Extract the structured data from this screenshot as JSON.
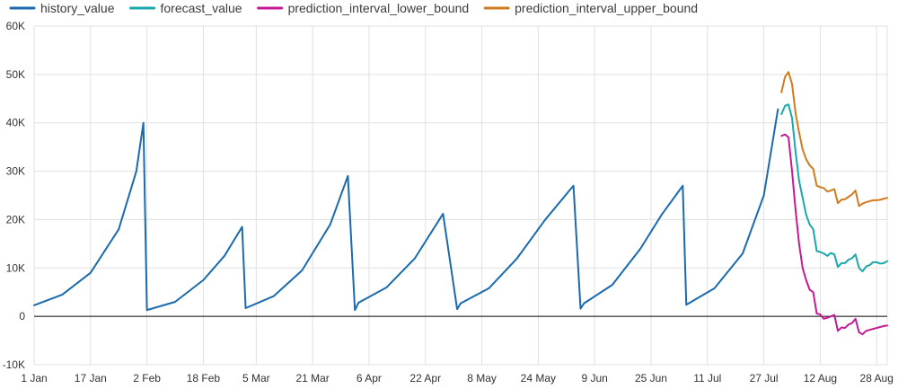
{
  "chart_data": {
    "type": "line",
    "ylim": [
      -10000,
      60000
    ],
    "y_ticks": [
      -10000,
      0,
      10000,
      20000,
      30000,
      40000,
      50000,
      60000
    ],
    "y_tick_labels": [
      "-10K",
      "0",
      "10K",
      "20K",
      "30K",
      "40K",
      "50K",
      "60K"
    ],
    "x_range": [
      "2023-01-01",
      "2023-08-31"
    ],
    "x_ticks": [
      "2023-01-01",
      "2023-01-17",
      "2023-02-02",
      "2023-02-18",
      "2023-03-05",
      "2023-03-21",
      "2023-04-06",
      "2023-04-22",
      "2023-05-08",
      "2023-05-24",
      "2023-06-09",
      "2023-06-25",
      "2023-07-11",
      "2023-07-27",
      "2023-08-12",
      "2023-08-28"
    ],
    "x_tick_labels": [
      "1 Jan",
      "17 Jan",
      "2 Feb",
      "18 Feb",
      "5 Mar",
      "21 Mar",
      "6 Apr",
      "22 Apr",
      "8 May",
      "24 May",
      "9 Jun",
      "25 Jun",
      "11 Jul",
      "27 Jul",
      "12 Aug",
      "28 Aug"
    ],
    "grid": true,
    "legend_position": "top-left",
    "series": [
      {
        "name": "history_value",
        "color": "#1a6aad",
        "x": [
          "2023-01-01",
          "2023-01-09",
          "2023-01-17",
          "2023-01-25",
          "2023-01-30",
          "2023-02-01",
          "2023-02-02",
          "2023-02-10",
          "2023-02-18",
          "2023-02-24",
          "2023-03-01",
          "2023-03-02",
          "2023-03-10",
          "2023-03-18",
          "2023-03-26",
          "2023-03-31",
          "2023-04-02",
          "2023-04-03",
          "2023-04-11",
          "2023-04-19",
          "2023-04-27",
          "2023-05-01",
          "2023-05-02",
          "2023-05-10",
          "2023-05-18",
          "2023-05-26",
          "2023-06-03",
          "2023-06-05",
          "2023-06-06",
          "2023-06-14",
          "2023-06-22",
          "2023-06-28",
          "2023-07-04",
          "2023-07-05",
          "2023-07-13",
          "2023-07-21",
          "2023-07-27",
          "2023-07-31"
        ],
        "values": [
          2300,
          4500,
          9000,
          18000,
          30000,
          40000,
          1300,
          3000,
          7500,
          12500,
          18500,
          1700,
          4200,
          9500,
          19000,
          29000,
          1300,
          2800,
          6000,
          12000,
          21200,
          1500,
          2700,
          5800,
          12000,
          20000,
          27000,
          1600,
          2700,
          6500,
          14000,
          21000,
          27000,
          2400,
          5800,
          13000,
          25000,
          42800
        ]
      },
      {
        "name": "forecast_value",
        "color": "#19a9ab",
        "x": [
          "2023-08-01",
          "2023-08-02",
          "2023-08-03",
          "2023-08-04",
          "2023-08-05",
          "2023-08-06",
          "2023-08-07",
          "2023-08-08",
          "2023-08-09",
          "2023-08-10",
          "2023-08-11",
          "2023-08-12",
          "2023-08-13",
          "2023-08-14",
          "2023-08-15",
          "2023-08-16",
          "2023-08-17",
          "2023-08-18",
          "2023-08-19",
          "2023-08-20",
          "2023-08-21",
          "2023-08-22",
          "2023-08-23",
          "2023-08-24",
          "2023-08-25",
          "2023-08-26",
          "2023-08-27",
          "2023-08-28",
          "2023-08-29",
          "2023-08-30",
          "2023-08-31"
        ],
        "values": [
          41800,
          43500,
          43800,
          41000,
          34000,
          28000,
          24500,
          21000,
          19000,
          18000,
          13500,
          13300,
          13000,
          12500,
          13100,
          12800,
          10200,
          11000,
          11000,
          11700,
          12000,
          12800,
          10000,
          9300,
          10300,
          10600,
          11200,
          11200,
          10900,
          11000,
          11400
        ]
      },
      {
        "name": "prediction_interval_lower_bound",
        "color": "#c41a94",
        "x": [
          "2023-08-01",
          "2023-08-02",
          "2023-08-03",
          "2023-08-04",
          "2023-08-05",
          "2023-08-06",
          "2023-08-07",
          "2023-08-08",
          "2023-08-09",
          "2023-08-10",
          "2023-08-11",
          "2023-08-12",
          "2023-08-13",
          "2023-08-14",
          "2023-08-15",
          "2023-08-16",
          "2023-08-17",
          "2023-08-18",
          "2023-08-19",
          "2023-08-20",
          "2023-08-21",
          "2023-08-22",
          "2023-08-23",
          "2023-08-24",
          "2023-08-25",
          "2023-08-26",
          "2023-08-27",
          "2023-08-28",
          "2023-08-29",
          "2023-08-30",
          "2023-08-31"
        ],
        "values": [
          37300,
          37600,
          37000,
          30000,
          22000,
          15000,
          10000,
          7500,
          5500,
          5000,
          600,
          400,
          -500,
          -300,
          0,
          300,
          -3000,
          -2300,
          -2400,
          -1700,
          -1400,
          -500,
          -3300,
          -3700,
          -3000,
          -2800,
          -2600,
          -2400,
          -2200,
          -2000,
          -1900
        ]
      },
      {
        "name": "prediction_interval_upper_bound",
        "color": "#d17b1e",
        "x": [
          "2023-08-01",
          "2023-08-02",
          "2023-08-03",
          "2023-08-04",
          "2023-08-05",
          "2023-08-06",
          "2023-08-07",
          "2023-08-08",
          "2023-08-09",
          "2023-08-10",
          "2023-08-11",
          "2023-08-12",
          "2023-08-13",
          "2023-08-14",
          "2023-08-15",
          "2023-08-16",
          "2023-08-17",
          "2023-08-18",
          "2023-08-19",
          "2023-08-20",
          "2023-08-21",
          "2023-08-22",
          "2023-08-23",
          "2023-08-24",
          "2023-08-25",
          "2023-08-26",
          "2023-08-27",
          "2023-08-28",
          "2023-08-29",
          "2023-08-30",
          "2023-08-31"
        ],
        "values": [
          46300,
          49500,
          50500,
          48000,
          42000,
          38000,
          34500,
          32500,
          31200,
          30500,
          27000,
          26700,
          26500,
          25800,
          26000,
          26300,
          23400,
          24100,
          24200,
          24700,
          25200,
          26000,
          22800,
          23300,
          23600,
          23800,
          24000,
          24000,
          24100,
          24300,
          24500
        ]
      }
    ]
  }
}
